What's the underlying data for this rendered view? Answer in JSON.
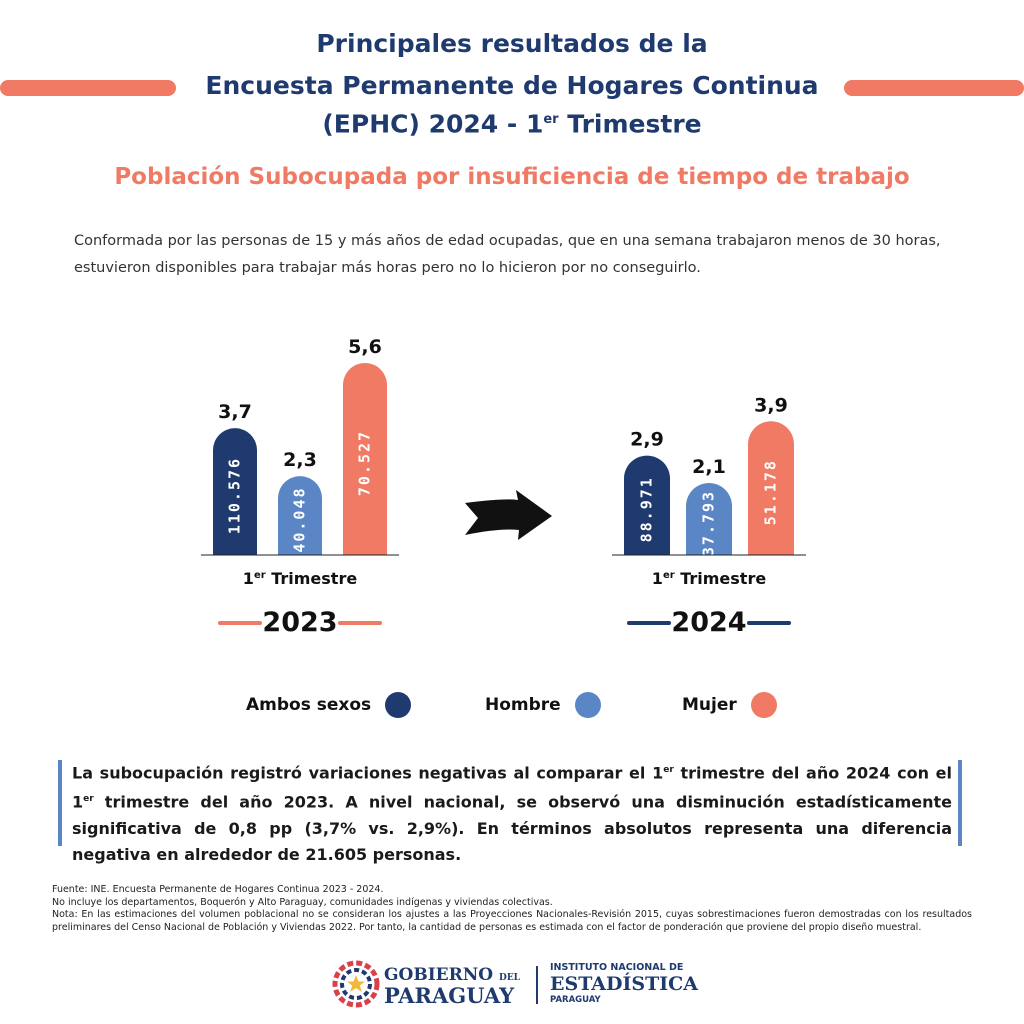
{
  "header": {
    "title_line1": "Principales resultados de la",
    "title_line2": "Encuesta Permanente de Hogares Continua",
    "title_line3_a": "(EPHC) 2024 - 1",
    "title_line3_sup": "er",
    "title_line3_b": " Trimestre",
    "subtitle": "Población Subocupada por insuficiencia de tiempo de trabajo",
    "description": "Conformada por las personas de 15 y más años de edad ocupadas, que en una semana trabajaron menos de 30 horas, estuvieron disponibles para trabajar más horas pero no lo hicieron por no conseguirlo."
  },
  "colors": {
    "ambos": "#1e3a6e",
    "hombre": "#5b86c6",
    "mujer": "#f07a64",
    "title": "#1e3a6e",
    "accent": "#f07a64"
  },
  "chart_data": [
    {
      "type": "bar",
      "period_sup": "er",
      "period": "Trimestre",
      "period_prefix": "1",
      "year": "2023",
      "categories": [
        "Ambos sexos",
        "Hombre",
        "Mujer"
      ],
      "percent_labels": [
        "3,7",
        "2,3",
        "5,6"
      ],
      "values": [
        3.7,
        2.3,
        5.6
      ],
      "counts": [
        "110.576",
        "40.048",
        "70.527"
      ]
    },
    {
      "type": "bar",
      "period_sup": "er",
      "period": "Trimestre",
      "period_prefix": "1",
      "year": "2024",
      "categories": [
        "Ambos sexos",
        "Hombre",
        "Mujer"
      ],
      "percent_labels": [
        "2,9",
        "2,1",
        "3,9"
      ],
      "values": [
        2.9,
        2.1,
        3.9
      ],
      "counts": [
        "88.971",
        "37.793",
        "51.178"
      ]
    }
  ],
  "legend": {
    "ambos": "Ambos sexos",
    "hombre": "Hombre",
    "mujer": "Mujer"
  },
  "note": {
    "part1": "La subocupación registró variaciones negativas al comparar el 1",
    "sup1": "er",
    "part2": " trimestre del año 2024 con el 1",
    "sup2": "er",
    "part3": " trimestre del año 2023. A nivel nacional, se observó una disminución estadísticamente significativa de 0,8 pp (3,7% vs. 2,9%). En términos absolutos representa una diferencia negativa en alrededor de 21.605 personas."
  },
  "footer": {
    "line1": "Fuente: INE. Encuesta Permanente de Hogares Continua 2023 - 2024.",
    "line2": "No incluye los departamentos, Boquerón y Alto Paraguay, comunidades indígenas y viviendas colectivas.",
    "line3": "Nota: En las estimaciones del volumen poblacional no se consideran los ajustes a las Proyecciones Nacionales-Revisión 2015, cuyas sobrestimaciones fueron demostradas con los resultados preliminares del Censo Nacional de Población y Viviendas 2022. Por tanto, la cantidad de personas es estimada con el factor de ponderación que proviene del propio diseño muestral."
  },
  "logos": {
    "gov_line1": "GOBIERNO",
    "gov_del": "DEL",
    "gov_line2": "PARAGUAY",
    "ine_line1": "INSTITUTO NACIONAL DE",
    "ine_line2": "ESTADÍSTICA",
    "ine_line3": "PARAGUAY"
  }
}
